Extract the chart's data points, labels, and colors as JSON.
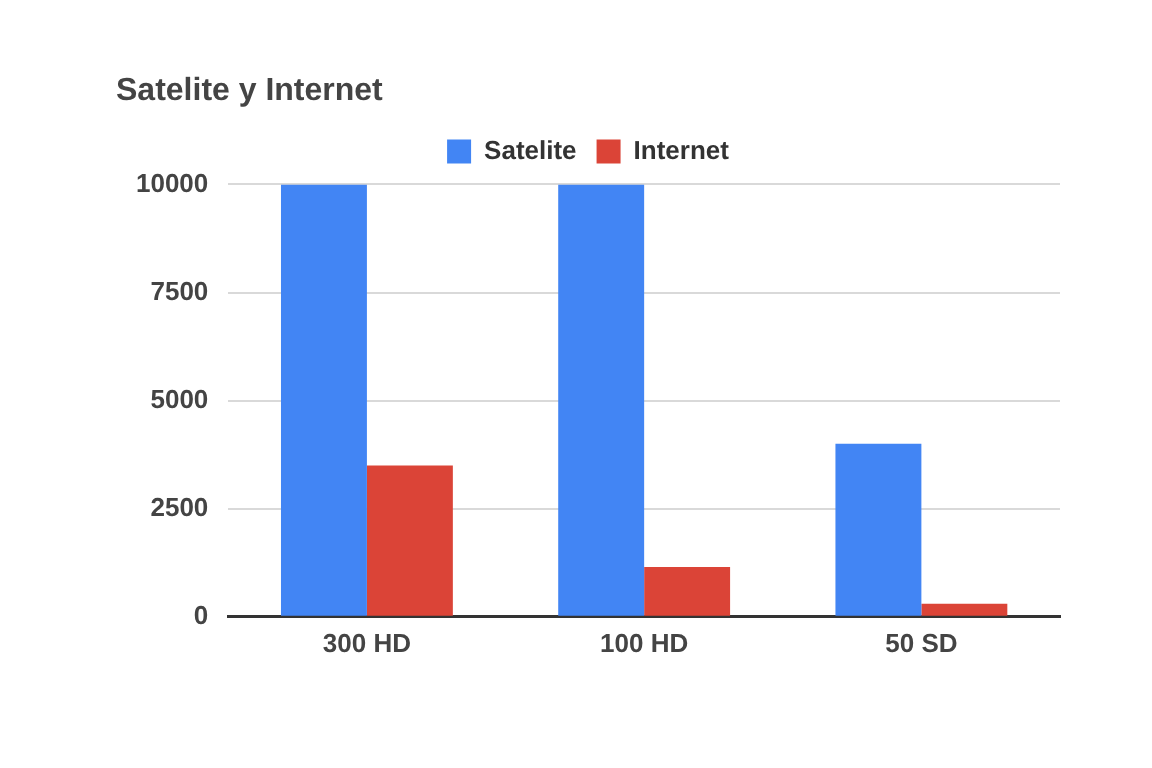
{
  "chart_data": {
    "type": "bar",
    "title": "Satelite y Internet",
    "categories": [
      "300 HD",
      "100 HD",
      "50 SD"
    ],
    "series": [
      {
        "name": "Satelite",
        "color": "#4285f4",
        "values": [
          10000,
          10000,
          4000
        ]
      },
      {
        "name": "Internet",
        "color": "#db4437",
        "values": [
          3500,
          1150,
          300
        ]
      }
    ],
    "ylim": [
      0,
      10000
    ],
    "yticks": [
      0,
      2500,
      5000,
      7500,
      10000
    ],
    "grid": "y",
    "legend": "top"
  }
}
